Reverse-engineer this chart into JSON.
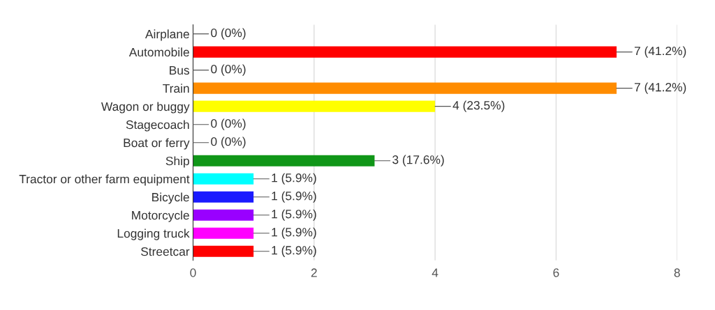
{
  "chart_data": {
    "type": "bar",
    "orientation": "horizontal",
    "categories": [
      "Airplane",
      "Automobile",
      "Bus",
      "Train",
      "Wagon or buggy",
      "Stagecoach",
      "Boat or ferry",
      "Ship",
      "Tractor or other farm equipment",
      "Bicycle",
      "Motorcycle",
      "Logging truck",
      "Streetcar"
    ],
    "values": [
      0,
      7,
      0,
      7,
      4,
      0,
      0,
      3,
      1,
      1,
      1,
      1,
      1
    ],
    "colors": [
      null,
      "#ff0000",
      null,
      "#ff8c00",
      "#ffff00",
      null,
      null,
      "#109618",
      "#00ffff",
      "#1a1aff",
      "#9900ff",
      "#ff00ff",
      "#ff0000"
    ],
    "value_labels": [
      "0 (0%)",
      "7 (41.2%)",
      "0 (0%)",
      "7 (41.2%)",
      "4 (23.5%)",
      "0 (0%)",
      "0 (0%)",
      "3 (17.6%)",
      "1 (5.9%)",
      "1 (5.9%)",
      "1 (5.9%)",
      "1 (5.9%)",
      "1 (5.9%)"
    ],
    "xlim": [
      0,
      8
    ],
    "xticks": [
      0,
      2,
      4,
      6,
      8
    ],
    "grid": "x"
  }
}
